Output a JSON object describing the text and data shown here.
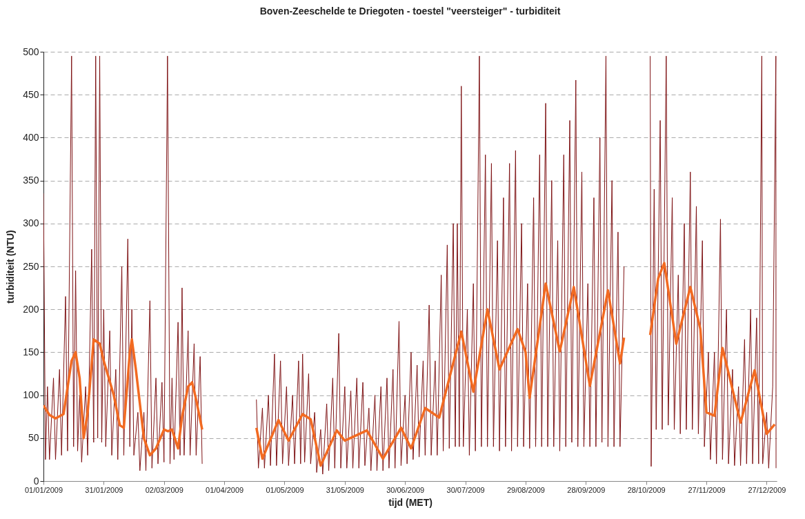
{
  "chart_data": {
    "type": "line",
    "title": "Boven-Zeeschelde te Driegoten  -  toestel \"veersteiger\"  -    turbiditeit",
    "xlabel": "tijd  (MET)",
    "ylabel": "turbiditeit (NTU)",
    "xlim": [
      "2009-01-01",
      "2010-01-01"
    ],
    "xticks": [
      {
        "value": "2009-01-01",
        "label": "01/01/2009"
      },
      {
        "value": "2009-01-31",
        "label": "31/01/2009"
      },
      {
        "value": "2009-03-02",
        "label": "02/03/2009"
      },
      {
        "value": "2009-04-01",
        "label": "01/04/2009"
      },
      {
        "value": "2009-05-01",
        "label": "01/05/2009"
      },
      {
        "value": "2009-05-31",
        "label": "31/05/2009"
      },
      {
        "value": "2009-06-30",
        "label": "30/06/2009"
      },
      {
        "value": "2009-07-30",
        "label": "30/07/2009"
      },
      {
        "value": "2009-08-29",
        "label": "29/08/2009"
      },
      {
        "value": "2009-09-28",
        "label": "28/09/2009"
      },
      {
        "value": "2009-10-28",
        "label": "28/10/2009"
      },
      {
        "value": "2009-11-27",
        "label": "27/11/2009"
      },
      {
        "value": "2009-12-27",
        "label": "27/12/2009"
      }
    ],
    "ylim": [
      0,
      500
    ],
    "yticks": [
      0,
      50,
      100,
      150,
      200,
      250,
      300,
      350,
      400,
      450,
      500
    ],
    "grid": "y",
    "marker": "none",
    "line_style": "solid",
    "series": [
      {
        "color": "#7f1416",
        "x": [
          "2009-01-01",
          "2009-01-02",
          "2009-01-03",
          "2009-01-04",
          "2009-01-06",
          "2009-01-07",
          "2009-01-09",
          "2009-01-10",
          "2009-01-12",
          "2009-01-13",
          "2009-01-15",
          "2009-01-16",
          "2009-01-17",
          "2009-01-18",
          "2009-01-19",
          "2009-01-20",
          "2009-01-22",
          "2009-01-23",
          "2009-01-25",
          "2009-01-26",
          "2009-01-27",
          "2009-01-28",
          "2009-01-29",
          "2009-01-30",
          "2009-01-31",
          "2009-02-01",
          "2009-02-03",
          "2009-02-04",
          "2009-02-06",
          "2009-02-07",
          "2009-02-09",
          "2009-02-10",
          "2009-02-12",
          "2009-02-13",
          "2009-02-14",
          "2009-02-15",
          "2009-02-17",
          "2009-02-18",
          "2009-02-20",
          "2009-02-21",
          "2009-02-23",
          "2009-02-24",
          "2009-02-26",
          "2009-02-27",
          "2009-03-01",
          "2009-03-02",
          "2009-03-03T18:00",
          "2009-03-05",
          "2009-03-06",
          "2009-03-07",
          "2009-03-09",
          "2009-03-10",
          "2009-03-11",
          "2009-03-12",
          "2009-03-14",
          "2009-03-15",
          "2009-03-17",
          "2009-03-18",
          "2009-03-20",
          "2009-03-21",
          "2009-04-01",
          "2009-04-17",
          "2009-04-18",
          "2009-04-20",
          "2009-04-21",
          "2009-04-23",
          "2009-04-24",
          "2009-04-26",
          "2009-04-27",
          "2009-04-29",
          "2009-04-30",
          "2009-05-02",
          "2009-05-03",
          "2009-05-05",
          "2009-05-06",
          "2009-05-08",
          "2009-05-09",
          "2009-05-10",
          "2009-05-11",
          "2009-05-13",
          "2009-05-14",
          "2009-05-16",
          "2009-05-17",
          "2009-05-19",
          "2009-05-20",
          "2009-05-22",
          "2009-05-23",
          "2009-05-25",
          "2009-05-26",
          "2009-05-28",
          "2009-05-29",
          "2009-05-31",
          "2009-06-01",
          "2009-06-03",
          "2009-06-04",
          "2009-06-06",
          "2009-06-07",
          "2009-06-09",
          "2009-06-10",
          "2009-06-12",
          "2009-06-13",
          "2009-06-15",
          "2009-06-16",
          "2009-06-18",
          "2009-06-19",
          "2009-06-21",
          "2009-06-22",
          "2009-06-24",
          "2009-06-25",
          "2009-06-27",
          "2009-06-28",
          "2009-06-30",
          "2009-07-01",
          "2009-07-03",
          "2009-07-04",
          "2009-07-06",
          "2009-07-07",
          "2009-07-09",
          "2009-07-10",
          "2009-07-12",
          "2009-07-13",
          "2009-07-15",
          "2009-07-16",
          "2009-07-18",
          "2009-07-19",
          "2009-07-21",
          "2009-07-22",
          "2009-07-24",
          "2009-07-25",
          "2009-07-26",
          "2009-07-27",
          "2009-07-28",
          "2009-07-29",
          "2009-07-31",
          "2009-08-01",
          "2009-08-03",
          "2009-08-04",
          "2009-08-06",
          "2009-08-07",
          "2009-08-09",
          "2009-08-10",
          "2009-08-12",
          "2009-08-13",
          "2009-08-15",
          "2009-08-16",
          "2009-08-18",
          "2009-08-19",
          "2009-08-21",
          "2009-08-22",
          "2009-08-24",
          "2009-08-25",
          "2009-08-27",
          "2009-08-28",
          "2009-08-30",
          "2009-08-31",
          "2009-09-02",
          "2009-09-03",
          "2009-09-05",
          "2009-09-06",
          "2009-09-08",
          "2009-09-09",
          "2009-09-11",
          "2009-09-12",
          "2009-09-14",
          "2009-09-15",
          "2009-09-17",
          "2009-09-18",
          "2009-09-20",
          "2009-09-21",
          "2009-09-23",
          "2009-09-24",
          "2009-09-26",
          "2009-09-27",
          "2009-09-29",
          "2009-09-30",
          "2009-10-02",
          "2009-10-03",
          "2009-10-05",
          "2009-10-06",
          "2009-10-08",
          "2009-10-09",
          "2009-10-11",
          "2009-10-12",
          "2009-10-14",
          "2009-10-15",
          "2009-10-17",
          "2009-10-23",
          "2009-10-30",
          "2009-10-30T12:00",
          "2009-11-01",
          "2009-11-02",
          "2009-11-04",
          "2009-11-05",
          "2009-11-07",
          "2009-11-08",
          "2009-11-10",
          "2009-11-11",
          "2009-11-13",
          "2009-11-14",
          "2009-11-16",
          "2009-11-17",
          "2009-11-19",
          "2009-11-20",
          "2009-11-22",
          "2009-11-23",
          "2009-11-25",
          "2009-11-26",
          "2009-11-28",
          "2009-11-29",
          "2009-12-01",
          "2009-12-02",
          "2009-12-04",
          "2009-12-05",
          "2009-12-07",
          "2009-12-08",
          "2009-12-10",
          "2009-12-11",
          "2009-12-13",
          "2009-12-14",
          "2009-12-16",
          "2009-12-17",
          "2009-12-19",
          "2009-12-20",
          "2009-12-22",
          "2009-12-23",
          "2009-12-24T14:00",
          "2009-12-25",
          "2009-12-27",
          "2009-12-28",
          "2009-12-30",
          "2009-12-31T14:00",
          "2009-12-31T16:00"
        ],
        "values": [
          335,
          25,
          110,
          25,
          120,
          25,
          130,
          30,
          215,
          35,
          495,
          40,
          245,
          35,
          100,
          22,
          110,
          30,
          270,
          45,
          495,
          50,
          495,
          45,
          200,
          40,
          175,
          30,
          130,
          25,
          250,
          30,
          282,
          40,
          200,
          30,
          80,
          12,
          80,
          12,
          210,
          15,
          120,
          20,
          115,
          22,
          495,
          20,
          120,
          25,
          185,
          30,
          225,
          30,
          175,
          30,
          160,
          30,
          145,
          20,
          null,
          95,
          15,
          85,
          15,
          100,
          18,
          148,
          18,
          140,
          20,
          110,
          18,
          100,
          20,
          140,
          20,
          148,
          22,
          125,
          20,
          80,
          10,
          60,
          8,
          90,
          12,
          120,
          15,
          172,
          15,
          110,
          15,
          105,
          15,
          120,
          15,
          115,
          18,
          85,
          12,
          100,
          12,
          110,
          12,
          120,
          15,
          130,
          15,
          186,
          18,
          100,
          20,
          150,
          25,
          135,
          28,
          140,
          30,
          205,
          30,
          140,
          30,
          240,
          35,
          275,
          38,
          300,
          40,
          300,
          40,
          460,
          40,
          200,
          30,
          230,
          35,
          495,
          40,
          380,
          40,
          370,
          40,
          280,
          35,
          330,
          40,
          370,
          35,
          385,
          40,
          300,
          40,
          230,
          38,
          330,
          40,
          380,
          40,
          440,
          40,
          350,
          40,
          280,
          35,
          380,
          40,
          420,
          45,
          467,
          40,
          360,
          40,
          230,
          40,
          330,
          40,
          400,
          45,
          495,
          40,
          350,
          40,
          290,
          40,
          250,
          null,
          495,
          17,
          340,
          60,
          420,
          60,
          495,
          65,
          330,
          60,
          240,
          55,
          300,
          60,
          360,
          60,
          320,
          55,
          280,
          40,
          150,
          25,
          150,
          20,
          305,
          25,
          200,
          20,
          130,
          18,
          110,
          18,
          165,
          20,
          200,
          20,
          190,
          20,
          495,
          20,
          80,
          15,
          110,
          495,
          15
        ]
      },
      {
        "color": "#f26a21",
        "x": [
          "2009-01-01",
          "2009-01-04",
          "2009-01-07",
          "2009-01-11",
          "2009-01-15",
          "2009-01-17",
          "2009-01-19",
          "2009-01-21",
          "2009-01-23",
          "2009-01-26",
          "2009-01-29",
          "2009-01-31",
          "2009-02-05",
          "2009-02-08",
          "2009-02-10",
          "2009-02-13",
          "2009-02-14",
          "2009-02-16",
          "2009-02-20",
          "2009-02-23",
          "2009-02-26",
          "2009-03-02",
          "2009-03-04",
          "2009-03-06",
          "2009-03-09",
          "2009-03-11",
          "2009-03-14",
          "2009-03-16",
          "2009-03-18",
          "2009-03-21",
          "2009-04-01",
          "2009-04-17",
          "2009-04-20",
          "2009-04-28",
          "2009-05-03",
          "2009-05-10",
          "2009-05-14",
          "2009-05-19",
          "2009-05-27",
          "2009-05-31",
          "2009-06-11",
          "2009-06-19",
          "2009-06-28",
          "2009-07-03",
          "2009-07-10",
          "2009-07-17",
          "2009-07-28",
          "2009-08-03",
          "2009-08-10",
          "2009-08-16",
          "2009-08-25",
          "2009-08-29",
          "2009-08-31",
          "2009-09-08",
          "2009-09-15",
          "2009-09-22",
          "2009-09-30",
          "2009-10-09",
          "2009-10-15",
          "2009-10-17",
          "2009-10-23",
          "2009-10-30",
          "2009-11-03",
          "2009-11-06",
          "2009-11-12",
          "2009-11-19",
          "2009-11-24",
          "2009-11-27",
          "2009-12-01",
          "2009-12-05",
          "2009-12-14",
          "2009-12-21",
          "2009-12-27",
          "2009-12-31"
        ],
        "values": [
          88,
          77,
          73,
          78,
          140,
          150,
          120,
          50,
          80,
          165,
          160,
          140,
          100,
          65,
          62,
          150,
          165,
          130,
          50,
          30,
          38,
          60,
          58,
          60,
          38,
          75,
          110,
          115,
          95,
          60,
          null,
          62,
          26,
          71,
          47,
          78,
          72,
          18,
          59,
          47,
          59,
          26,
          62,
          38,
          85,
          74,
          174,
          104,
          200,
          130,
          177,
          150,
          97,
          230,
          151,
          226,
          111,
          222,
          137,
          167,
          null,
          170,
          236,
          254,
          160,
          226,
          177,
          80,
          76,
          155,
          68,
          129,
          55,
          66
        ]
      }
    ]
  }
}
